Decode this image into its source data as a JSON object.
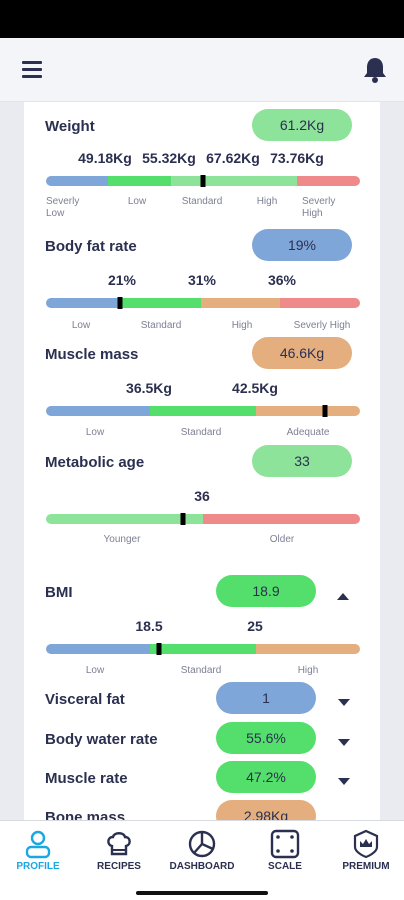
{
  "metrics": [
    {
      "title": "Weight",
      "value": "61.2Kg",
      "thresholds": [
        "49.18Kg",
        "55.32Kg",
        "67.62Kg",
        "73.76Kg"
      ],
      "labels": [
        "Severly Low",
        "Low",
        "Standard",
        "High",
        "Severly High"
      ],
      "level": 0.5
    },
    {
      "title": "Body fat rate",
      "value": "19%",
      "thresholds": [
        "21%",
        "31%",
        "36%"
      ],
      "labels": [
        "Low",
        "Standard",
        "High",
        "Severly High"
      ],
      "level": 0.235
    },
    {
      "title": "Muscle mass",
      "value": "46.6Kg",
      "thresholds": [
        "36.5Kg",
        "42.5Kg"
      ],
      "labels": [
        "Low",
        "Standard",
        "Adequate"
      ],
      "level": 0.89
    },
    {
      "title": "Metabolic age",
      "value": "33",
      "thresholds": [
        "36"
      ],
      "labels": [
        "Younger",
        "Older"
      ],
      "level": 0.435
    },
    {
      "title": "BMI",
      "value": "18.9",
      "thresholds": [
        "18.5",
        "25"
      ],
      "labels": [
        "Low",
        "Standard",
        "High"
      ],
      "level": 0.36
    }
  ],
  "rows": [
    {
      "title": "Visceral fat",
      "value": "1"
    },
    {
      "title": "Body water rate",
      "value": "55.6%"
    },
    {
      "title": "Muscle rate",
      "value": "47.2%"
    },
    {
      "title": "Bone mass",
      "value": "2.98Kg"
    }
  ],
  "nav": [
    {
      "label": "PROFILE",
      "icon": "profile-icon",
      "active": true
    },
    {
      "label": "RECIPES",
      "icon": "chef-hat-icon"
    },
    {
      "label": "DASHBOARD",
      "icon": "pie-chart-icon"
    },
    {
      "label": "SCALE",
      "icon": "scale-icon"
    },
    {
      "label": "PREMIUM",
      "icon": "crown-icon"
    }
  ],
  "colors": {
    "blue": "#7fa6d8",
    "green": "#54df6c",
    "lightgreen": "#8ee39a",
    "orange": "#e4ae7e",
    "red": "#ef8a8a",
    "active": "#1aa8e0"
  }
}
